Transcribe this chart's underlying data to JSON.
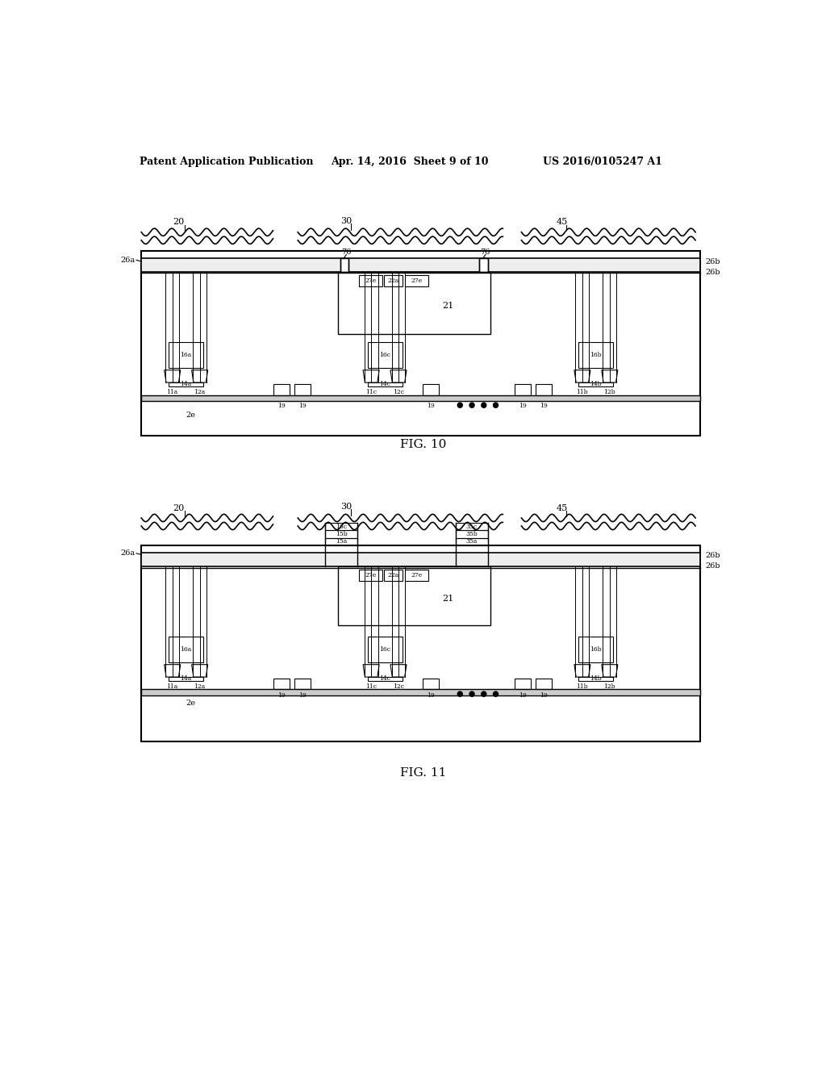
{
  "header_left": "Patent Application Publication",
  "header_mid": "Apr. 14, 2016  Sheet 9 of 10",
  "header_right": "US 2016/0105247 A1",
  "fig10_caption": "FIG. 10",
  "fig11_caption": "FIG. 11",
  "bg_color": "#ffffff",
  "line_color": "#000000",
  "text_color": "#000000"
}
